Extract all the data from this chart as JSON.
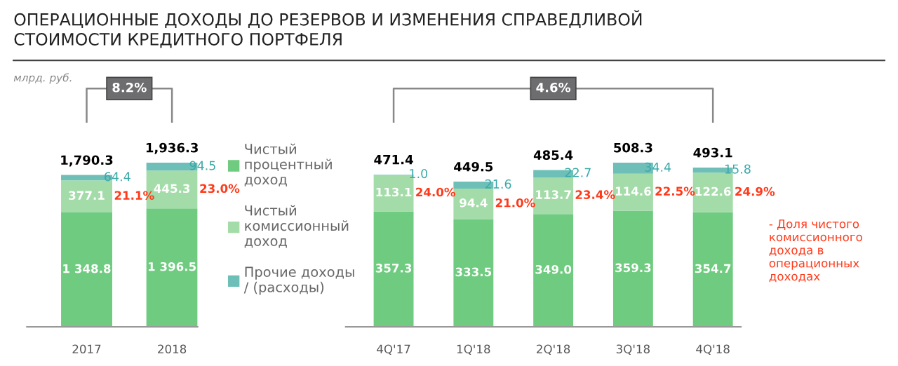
{
  "chart_data": [
    {
      "type": "bar",
      "stacked": true,
      "title": "ОПЕРАЦИОННЫЕ ДОХОДЫ ДО РЕЗЕРВОВ И ИЗМЕНЕНИЯ СПРАВЕДЛИВОЙ СТОИМОСТИ КРЕДИТНОГО ПОРТФЕЛЯ",
      "subtitle": "млрд. руб.",
      "categories": [
        "2017",
        "2018"
      ],
      "series": [
        {
          "name": "Чистый процентный доход",
          "color": "#6fcb7f",
          "values": [
            1348.8,
            1396.5
          ],
          "value_labels": [
            "1 348.8",
            "1 396.5"
          ]
        },
        {
          "name": "Чистый комиссионный доход",
          "color": "#a4dca9",
          "values": [
            377.1,
            445.3
          ],
          "value_labels": [
            "377.1",
            "445.3"
          ]
        },
        {
          "name": "Прочие доходы / (расходы)",
          "color": "#6dbfb8",
          "values": [
            64.4,
            94.5
          ],
          "value_labels": [
            "64.4",
            "94.5"
          ]
        }
      ],
      "totals": [
        "1,790.3",
        "1,936.3"
      ],
      "annotations": [
        "8.2%",
        "21.1%",
        "23.0%"
      ],
      "tick_labels": "x",
      "legend": "right",
      "grid": false
    },
    {
      "type": "bar",
      "stacked": true,
      "categories": [
        "4Q'17",
        "1Q'18",
        "2Q'18",
        "3Q'18",
        "4Q'18"
      ],
      "series": [
        {
          "color": "#6fcb7f",
          "values": [
            357.3,
            333.5,
            349.0,
            359.3,
            354.7
          ],
          "value_labels": [
            "357.3",
            "333.5",
            "349.0",
            "359.3",
            "354.7"
          ]
        },
        {
          "color": "#a4dca9",
          "values": [
            113.1,
            94.4,
            113.7,
            114.6,
            122.6
          ],
          "value_labels": [
            "113.1",
            "94.4",
            "113.7",
            "114.6",
            "122.6"
          ]
        },
        {
          "color": "#6dbfb8",
          "values": [
            1.0,
            21.6,
            22.7,
            34.4,
            15.8
          ],
          "value_labels": [
            "1.0",
            "21.6",
            "22.7",
            "34.4",
            "15.8"
          ]
        }
      ],
      "totals": [
        "471.4",
        "449.5",
        "485.4",
        "508.3",
        "493.1"
      ],
      "annotations": [
        "4.6%",
        "24.0%",
        "21.0%",
        "23.4%",
        "22.5%",
        "24.9%",
        "- Доля чистого комиссионного дохода в операционных доходах"
      ],
      "tick_labels": "x",
      "legend": false,
      "grid": false
    }
  ]
}
